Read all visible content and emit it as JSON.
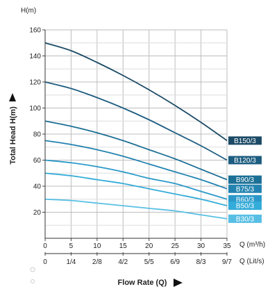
{
  "chart_data": {
    "type": "line",
    "title": "",
    "y_unit_label": "H(m)",
    "ylabel": "Total Head H(m)",
    "xlabel": "Flow Rate (Q)",
    "x_unit_label_1": "Q  (m³/h)",
    "x_unit_label_2": "Q  (Lit/s)",
    "xlim": [
      0,
      35
    ],
    "ylim": [
      0,
      160
    ],
    "grid": true,
    "x_ticks": [
      0,
      5,
      10,
      15,
      20,
      25,
      30,
      35
    ],
    "x_tick_labels_1": [
      "0",
      "5",
      "10",
      "15",
      "20",
      "25",
      "30",
      "35"
    ],
    "x_tick_labels_2": [
      "0",
      "1/4",
      "2/8",
      "4/2",
      "5/5",
      "6/9",
      "8/3",
      "9/7"
    ],
    "y_ticks": [
      20,
      40,
      60,
      80,
      100,
      120,
      140,
      160
    ],
    "y_tick_labels": [
      "20",
      "40",
      "60",
      "80",
      "100",
      "120",
      "140",
      "160"
    ],
    "x": [
      0,
      5,
      10,
      15,
      20,
      25,
      30,
      35
    ],
    "series": [
      {
        "name": "B150/3",
        "color": "#1b4a66",
        "values": [
          150,
          144,
          135,
          125,
          114,
          102,
          89,
          75
        ]
      },
      {
        "name": "B120/3",
        "color": "#1d5d80",
        "values": [
          120,
          115,
          108,
          100,
          91,
          81,
          71,
          60
        ]
      },
      {
        "name": "B90/3",
        "color": "#1c6f95",
        "values": [
          90,
          86,
          81,
          75,
          68,
          61,
          53,
          45
        ]
      },
      {
        "name": "B75/3",
        "color": "#2283b0",
        "values": [
          75,
          72,
          68,
          63,
          57,
          51,
          45,
          38
        ]
      },
      {
        "name": "B60/3",
        "color": "#2a99c9",
        "values": [
          60,
          58,
          55,
          51,
          46,
          42,
          36,
          30
        ]
      },
      {
        "name": "B50/3",
        "color": "#34acd9",
        "values": [
          50,
          48,
          45,
          42,
          38,
          34,
          30,
          25
        ]
      },
      {
        "name": "B30/3",
        "color": "#58bfe4",
        "values": [
          30,
          29,
          27,
          25,
          23,
          21,
          18,
          15
        ]
      }
    ]
  }
}
